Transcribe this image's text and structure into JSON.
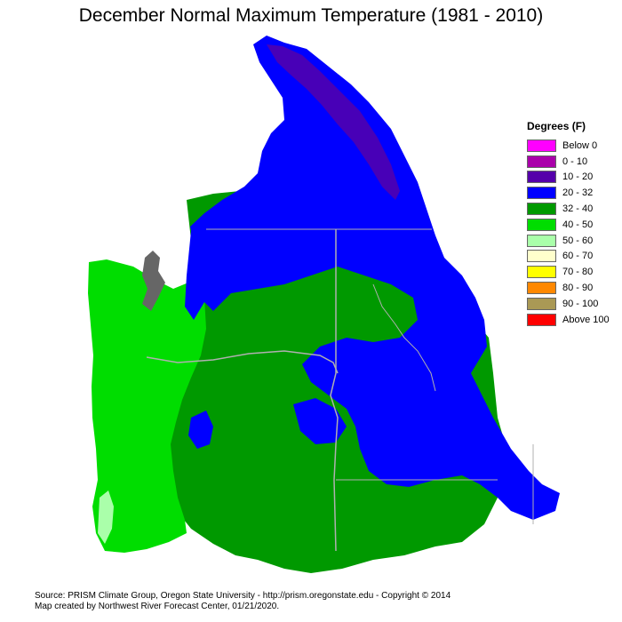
{
  "title": "December Normal Maximum Temperature (1981 - 2010)",
  "legend": {
    "title": "Degrees (F)",
    "items": [
      {
        "label": "Below 0",
        "color": "#ff00ff"
      },
      {
        "label": "0 - 10",
        "color": "#aa00aa"
      },
      {
        "label": "10 - 20",
        "color": "#5500aa"
      },
      {
        "label": "20 - 32",
        "color": "#0000ff"
      },
      {
        "label": "32 - 40",
        "color": "#009900"
      },
      {
        "label": "40 - 50",
        "color": "#00dd00"
      },
      {
        "label": "50 - 60",
        "color": "#aaffaa"
      },
      {
        "label": "60 - 70",
        "color": "#ffffcc"
      },
      {
        "label": "70 - 80",
        "color": "#ffff00"
      },
      {
        "label": "80 - 90",
        "color": "#ff8800"
      },
      {
        "label": "90 - 100",
        "color": "#aa9955"
      },
      {
        "label": "Above 100",
        "color": "#ff0000"
      }
    ]
  },
  "footer": {
    "line1": "Source: PRISM Climate Group, Oregon State University - http://prism.oregonstate.edu - Copyright © 2014",
    "line2": "Map created by Northwest River Forecast Center, 01/21/2020."
  },
  "map_colors": {
    "coastal": "#00dd00",
    "interior": "#009900",
    "mountains": "#0000ff",
    "high_peaks": "#5500aa",
    "coast_warm": "#aaffaa",
    "water": "#666666",
    "boundary": "#b0b0b0"
  }
}
